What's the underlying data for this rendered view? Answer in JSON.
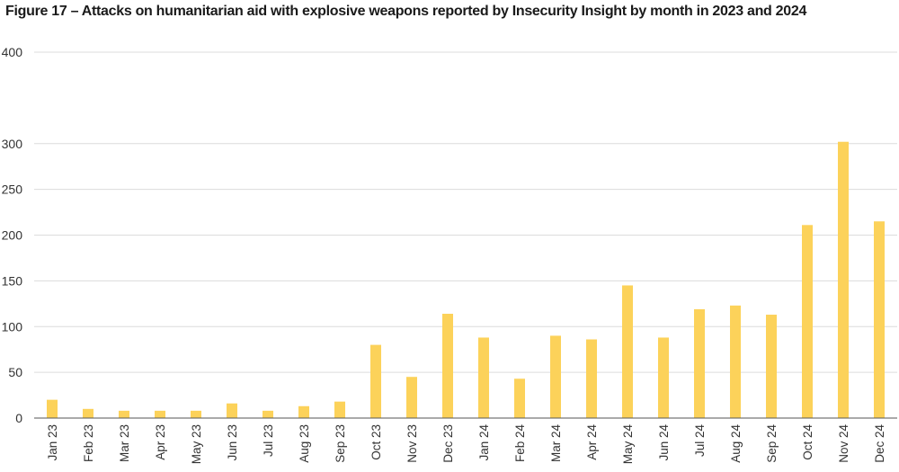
{
  "chart_data": {
    "type": "bar",
    "title": "Figure 17 – Attacks on humanitarian aid with explosive weapons reported by Insecurity Insight by month in 2023 and 2024",
    "xlabel": "",
    "ylabel": "",
    "ylim": [
      0,
      400
    ],
    "yticks": [
      0,
      50,
      100,
      150,
      200,
      250,
      300,
      400
    ],
    "grid": true,
    "bar_color": "#FCD25A",
    "categories": [
      "Jan 23",
      "Feb 23",
      "Mar 23",
      "Apr 23",
      "May 23",
      "Jun 23",
      "Jul 23",
      "Aug 23",
      "Sep 23",
      "Oct 23",
      "Nov 23",
      "Dec 23",
      "Jan 24",
      "Feb 24",
      "Mar 24",
      "Apr 24",
      "May 24",
      "Jun 24",
      "Jul 24",
      "Aug 24",
      "Sep 24",
      "Oct 24",
      "Nov 24",
      "Dec 24"
    ],
    "values": [
      20,
      10,
      8,
      8,
      8,
      16,
      8,
      13,
      18,
      80,
      45,
      114,
      88,
      43,
      90,
      86,
      145,
      88,
      119,
      123,
      113,
      211,
      302,
      215
    ]
  }
}
